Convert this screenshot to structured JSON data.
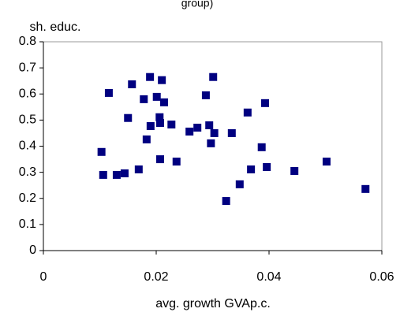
{
  "chart_data": {
    "type": "scatter",
    "title": "group)",
    "x_label": "avg. growth GVAp.c.",
    "y_label": "sh. educ.",
    "color": "#000080",
    "x": [
      0.0103,
      0.0106,
      0.0116,
      0.013,
      0.0144,
      0.015,
      0.0157,
      0.0169,
      0.0178,
      0.0183,
      0.0189,
      0.019,
      0.0201,
      0.0206,
      0.0207,
      0.0207,
      0.021,
      0.0214,
      0.0227,
      0.0236,
      0.0259,
      0.0273,
      0.0288,
      0.0294,
      0.0297,
      0.0301,
      0.0303,
      0.0324,
      0.0334,
      0.0348,
      0.0362,
      0.0368,
      0.0387,
      0.0393,
      0.0396,
      0.0445,
      0.0502,
      0.0571
    ],
    "values": [
      0.378,
      0.29,
      0.604,
      0.29,
      0.296,
      0.508,
      0.637,
      0.311,
      0.58,
      0.426,
      0.665,
      0.477,
      0.589,
      0.511,
      0.489,
      0.35,
      0.653,
      0.568,
      0.483,
      0.341,
      0.456,
      0.471,
      0.595,
      0.48,
      0.411,
      0.665,
      0.45,
      0.19,
      0.45,
      0.254,
      0.529,
      0.311,
      0.396,
      0.565,
      0.32,
      0.305,
      0.341,
      0.236
    ],
    "xlim": [
      0,
      0.06
    ],
    "xticks": [
      0,
      0.02,
      0.04,
      0.06
    ],
    "ylim": [
      0,
      0.8
    ],
    "yticks": [
      0,
      0.1,
      0.2,
      0.3,
      0.4,
      0.5,
      0.6,
      0.7,
      0.8
    ]
  }
}
